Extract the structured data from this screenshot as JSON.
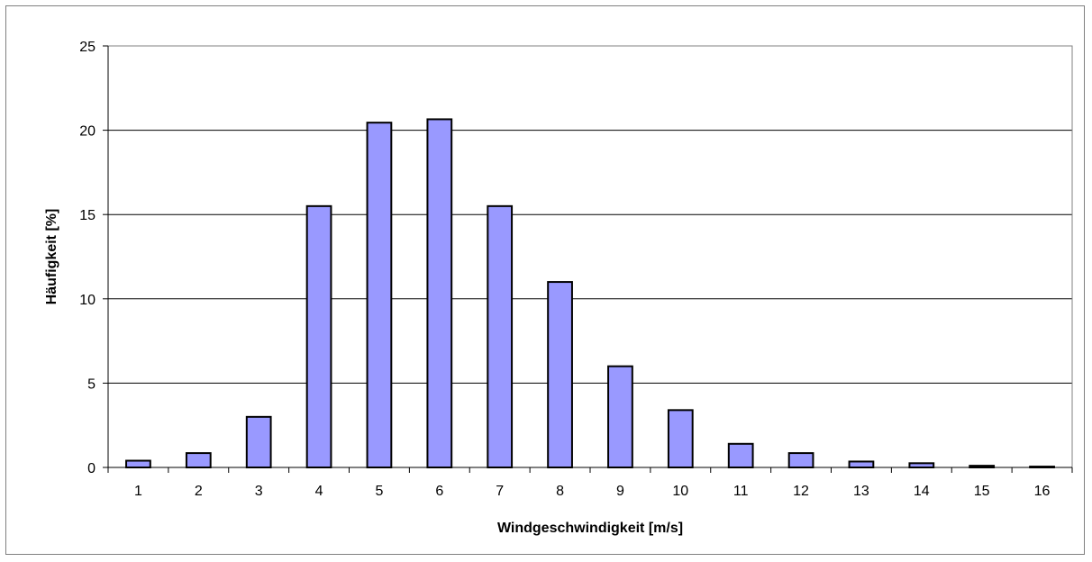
{
  "chart_data": {
    "type": "bar",
    "title": "",
    "xlabel": "Windgeschwindigkeit [m/s]",
    "ylabel": "Häufigkeit [%]",
    "categories": [
      "1",
      "2",
      "3",
      "4",
      "5",
      "6",
      "7",
      "8",
      "9",
      "10",
      "11",
      "12",
      "13",
      "14",
      "15",
      "16"
    ],
    "values": [
      0.4,
      0.85,
      3.0,
      15.5,
      20.45,
      20.65,
      15.5,
      11.0,
      6.0,
      3.4,
      1.4,
      0.85,
      0.35,
      0.25,
      0.1,
      0.05
    ],
    "ylim": [
      0,
      25
    ],
    "yticks": [
      "0",
      "5",
      "10",
      "15",
      "20",
      "25"
    ],
    "grid": true,
    "legend": "none",
    "bar_color": "#9999ff",
    "bar_edge_color": "#000000"
  }
}
